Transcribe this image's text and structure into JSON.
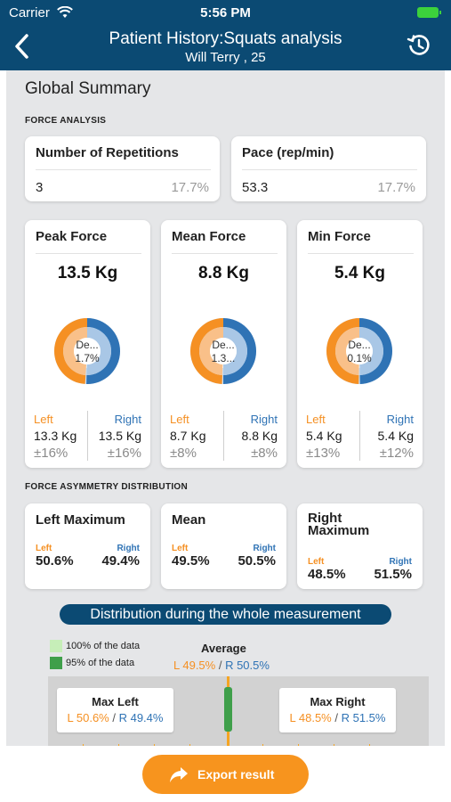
{
  "status_bar": {
    "carrier": "Carrier",
    "time": "5:56 PM"
  },
  "header": {
    "title": "Patient History:Squats analysis",
    "subtitle": "Will Terry , 25"
  },
  "summary": {
    "title": "Global Summary",
    "force_label": "FORCE ANALYSIS",
    "asym_label": "FORCE ASYMMETRY DISTRIBUTION"
  },
  "stats": [
    {
      "title": "Number of Repetitions",
      "value": "3",
      "pct": "17.7%"
    },
    {
      "title": "Pace (rep/min)",
      "value": "53.3",
      "pct": "17.7%"
    }
  ],
  "forces": [
    {
      "title": "Peak Force",
      "value": "13.5 Kg",
      "donut_line1": "De...",
      "donut_line2": "1.7%",
      "left_label": "Left",
      "right_label": "Right",
      "left_value": "13.3 Kg",
      "right_value": "13.5 Kg",
      "left_pm": "±16%",
      "right_pm": "±16%",
      "left_share": 0.493,
      "right_share": 0.507
    },
    {
      "title": "Mean Force",
      "value": "8.8 Kg",
      "donut_line1": "De...",
      "donut_line2": "1.3...",
      "left_label": "Left",
      "right_label": "Right",
      "left_value": "8.7 Kg",
      "right_value": "8.8 Kg",
      "left_pm": "±8%",
      "right_pm": "±8%",
      "left_share": 0.497,
      "right_share": 0.503
    },
    {
      "title": "Min Force",
      "value": "5.4 Kg",
      "donut_line1": "De...",
      "donut_line2": "0.1%",
      "left_label": "Left",
      "right_label": "Right",
      "left_value": "5.4 Kg",
      "right_value": "5.4 Kg",
      "left_pm": "±13%",
      "right_pm": "±12%",
      "left_share": 0.5,
      "right_share": 0.5
    }
  ],
  "asymmetry": [
    {
      "title": "Left Maximum",
      "left_label": "Left",
      "right_label": "Right",
      "left": "50.6%",
      "right": "49.4%"
    },
    {
      "title": "Mean",
      "left_label": "Left",
      "right_label": "Right",
      "left": "49.5%",
      "right": "50.5%"
    },
    {
      "title": "Right Maximum",
      "left_label": "Left",
      "right_label": "Right",
      "left": "48.5%",
      "right": "51.5%"
    }
  ],
  "distribution": {
    "title": "Distribution during the whole measurement",
    "legend_100": "100% of the data",
    "legend_95": "95% of the data",
    "average_title": "Average",
    "average_left": "L 49.5%",
    "average_sep": " / ",
    "average_right": "R 50.5%",
    "max_left_title": "Max Left",
    "max_left_l": "L 50.6%",
    "max_left_r": "R 49.4%",
    "max_right_title": "Max Right",
    "max_right_l": "L 48.5%",
    "max_right_r": "R 51.5%"
  },
  "colors": {
    "header": "#0b4a73",
    "left": "#f59023",
    "right": "#2f73b5",
    "export": "#f7941e",
    "legend_100": "#c6eeb8",
    "legend_95": "#3f9f4a"
  },
  "footer": {
    "export_label": "Export result",
    "export_icon": "share-arrow-icon"
  }
}
